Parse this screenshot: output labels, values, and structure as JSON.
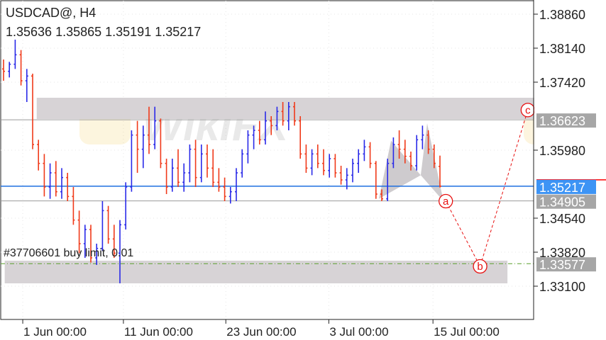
{
  "header": {
    "symbol_timeframe": "USDCAD@, H4",
    "ohlc": "1.35636 1.35865 1.35191 1.35217"
  },
  "order_label": "#37706601 buy limit, 0.01",
  "watermark": "WikiFX",
  "colors": {
    "bull": "#2a2ae8",
    "bear": "#f03a1a",
    "current_price": "#1e6fe0",
    "price_tag_blue": "#3d94f5",
    "tag_gray": "#a6a6a6",
    "zone": "#d7d3d6",
    "order_line": "#5aa02c",
    "wave": "#e81010"
  },
  "chart_data": {
    "type": "ohlc",
    "symbol": "USDCAD@",
    "timeframe": "H4",
    "ylim": [
      1.331,
      1.3886
    ],
    "y_ticks": [
      "1.38860",
      "1.38140",
      "1.37420",
      "1.35980",
      "1.34540",
      "1.33820",
      "1.33100"
    ],
    "x_ticks": [
      {
        "bar": 3.3,
        "label": "1 Jun 00:00"
      },
      {
        "bar": 20.6,
        "label": "11 Jun 00:00"
      },
      {
        "bar": 38.2,
        "label": "23 Jun 00:00"
      },
      {
        "bar": 55.9,
        "label": "3 Jul 00:00"
      },
      {
        "bar": 73.8,
        "label": "15 Jul 00:00"
      }
    ],
    "grid": true,
    "bars": [
      [
        1.377,
        1.379,
        1.3745,
        1.3765
      ],
      [
        1.3765,
        1.3785,
        1.3752,
        1.378
      ],
      [
        1.378,
        1.3832,
        1.377,
        1.38
      ],
      [
        1.38,
        1.381,
        1.3735,
        1.3745
      ],
      [
        1.3745,
        1.377,
        1.37,
        1.3755
      ],
      [
        1.3755,
        1.376,
        1.36,
        1.361
      ],
      [
        1.361,
        1.362,
        1.3555,
        1.357
      ],
      [
        1.357,
        1.359,
        1.35,
        1.352
      ],
      [
        1.352,
        1.357,
        1.3495,
        1.355
      ],
      [
        1.355,
        1.3575,
        1.35,
        1.351
      ],
      [
        1.351,
        1.356,
        1.3495,
        1.354
      ],
      [
        1.354,
        1.355,
        1.349,
        1.35
      ],
      [
        1.35,
        1.352,
        1.344,
        1.345
      ],
      [
        1.345,
        1.347,
        1.338,
        1.34
      ],
      [
        1.34,
        1.344,
        1.337,
        1.343
      ],
      [
        1.343,
        1.344,
        1.336,
        1.337
      ],
      [
        1.337,
        1.34,
        1.3355,
        1.339
      ],
      [
        1.339,
        1.349,
        1.3385,
        1.347
      ],
      [
        1.347,
        1.348,
        1.34,
        1.341
      ],
      [
        1.341,
        1.344,
        1.337,
        1.338
      ],
      [
        1.338,
        1.345,
        1.3316,
        1.344
      ],
      [
        1.344,
        1.353,
        1.343,
        1.352
      ],
      [
        1.352,
        1.364,
        1.351,
        1.363
      ],
      [
        1.363,
        1.366,
        1.355,
        1.36
      ],
      [
        1.36,
        1.365,
        1.356,
        1.363
      ],
      [
        1.363,
        1.369,
        1.359,
        1.361
      ],
      [
        1.361,
        1.369,
        1.36,
        1.366
      ],
      [
        1.366,
        1.3665,
        1.356,
        1.357
      ],
      [
        1.357,
        1.358,
        1.3505,
        1.352
      ],
      [
        1.352,
        1.358,
        1.351,
        1.356
      ],
      [
        1.356,
        1.36,
        1.352,
        1.353
      ],
      [
        1.353,
        1.357,
        1.351,
        1.355
      ],
      [
        1.355,
        1.361,
        1.353,
        1.36
      ],
      [
        1.36,
        1.362,
        1.352,
        1.354
      ],
      [
        1.354,
        1.361,
        1.353,
        1.359
      ],
      [
        1.359,
        1.361,
        1.354,
        1.356
      ],
      [
        1.356,
        1.36,
        1.352,
        1.353
      ],
      [
        1.353,
        1.356,
        1.351,
        1.352
      ],
      [
        1.352,
        1.354,
        1.349,
        1.35
      ],
      [
        1.35,
        1.352,
        1.3485,
        1.351
      ],
      [
        1.351,
        1.356,
        1.349,
        1.355
      ],
      [
        1.355,
        1.36,
        1.354,
        1.359
      ],
      [
        1.359,
        1.364,
        1.357,
        1.363
      ],
      [
        1.363,
        1.365,
        1.36,
        1.364
      ],
      [
        1.364,
        1.366,
        1.361,
        1.362
      ],
      [
        1.362,
        1.368,
        1.361,
        1.366
      ],
      [
        1.366,
        1.367,
        1.363,
        1.365
      ],
      [
        1.365,
        1.369,
        1.364,
        1.368
      ],
      [
        1.368,
        1.37,
        1.365,
        1.366
      ],
      [
        1.366,
        1.37,
        1.364,
        1.369
      ],
      [
        1.369,
        1.37,
        1.365,
        1.366
      ],
      [
        1.366,
        1.367,
        1.358,
        1.359
      ],
      [
        1.359,
        1.361,
        1.355,
        1.356
      ],
      [
        1.356,
        1.36,
        1.3545,
        1.359
      ],
      [
        1.359,
        1.361,
        1.356,
        1.357
      ],
      [
        1.357,
        1.36,
        1.3545,
        1.3555
      ],
      [
        1.3555,
        1.359,
        1.354,
        1.358
      ],
      [
        1.358,
        1.359,
        1.354,
        1.355
      ],
      [
        1.355,
        1.3565,
        1.3525,
        1.3535
      ],
      [
        1.3535,
        1.356,
        1.3515,
        1.3545
      ],
      [
        1.3545,
        1.358,
        1.353,
        1.357
      ],
      [
        1.357,
        1.36,
        1.355,
        1.359
      ],
      [
        1.359,
        1.362,
        1.3575,
        1.3605
      ],
      [
        1.3605,
        1.3615,
        1.356,
        1.357
      ],
      [
        1.357,
        1.3575,
        1.3495,
        1.3505
      ],
      [
        1.3505,
        1.3515,
        1.349,
        1.3495
      ],
      [
        1.3495,
        1.358,
        1.349,
        1.357
      ],
      [
        1.357,
        1.3625,
        1.356,
        1.361
      ],
      [
        1.361,
        1.364,
        1.358,
        1.36
      ],
      [
        1.36,
        1.362,
        1.357,
        1.3585
      ],
      [
        1.3585,
        1.3595,
        1.3555,
        1.3565
      ],
      [
        1.3565,
        1.363,
        1.3555,
        1.362
      ],
      [
        1.362,
        1.365,
        1.36,
        1.363
      ],
      [
        1.363,
        1.364,
        1.359,
        1.36
      ],
      [
        1.36,
        1.361,
        1.356,
        1.357
      ],
      [
        1.35636,
        1.35865,
        1.35191,
        1.35217
      ]
    ],
    "zones": [
      {
        "from_bar": 5.7,
        "to_bar": 91.2,
        "top": 1.3709,
        "bottom": 1.3664
      },
      {
        "from_bar": 0.2,
        "to_bar": 86.6,
        "top": 1.3364,
        "bottom": 1.3316
      }
    ],
    "levels": [
      {
        "price": 1.36623,
        "label": "1.36623",
        "style": "gray"
      },
      {
        "price": 1.34905,
        "label": "1.34905",
        "style": "gray"
      },
      {
        "price": 1.35217,
        "label": "1.35217",
        "style": "current"
      },
      {
        "price": 1.33577,
        "label": "1.33577",
        "style": "order"
      }
    ],
    "pattern": [
      [
        [
          64.5,
          1.3495
        ],
        [
          66.6,
          1.3618
        ],
        [
          71.7,
          1.3545
        ]
      ],
      [
        [
          71.7,
          1.3545
        ],
        [
          72.8,
          1.3655
        ],
        [
          75.6,
          1.349
        ]
      ]
    ],
    "waves": [
      {
        "label": "a",
        "bar": 76.0,
        "price": 1.349
      },
      {
        "label": "b",
        "bar": 81.9,
        "price": 1.3352
      },
      {
        "label": "c",
        "bar": 90.1,
        "price": 1.3683
      }
    ]
  }
}
